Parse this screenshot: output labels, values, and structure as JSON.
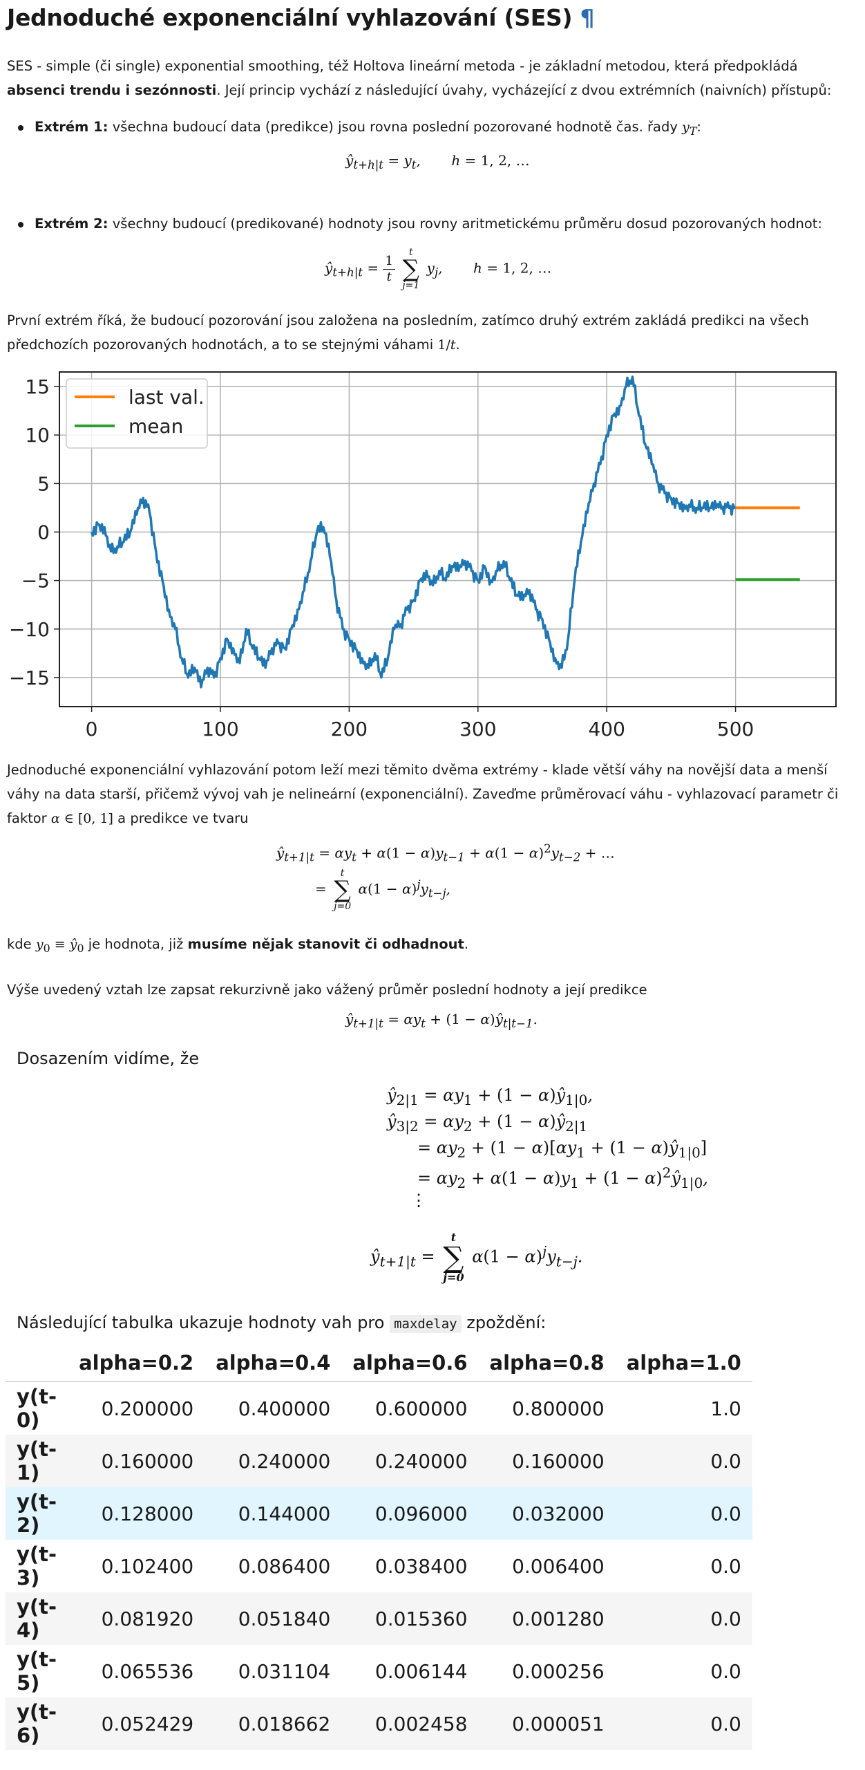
{
  "heading": {
    "title": "Jednoduché exponenciální vyhlazování (SES)",
    "anchor": "¶"
  },
  "intro": {
    "text": "SES - simple (či single) exponential smoothing, též Holtova lineární metoda - je základní metodou, která předpokládá ",
    "bold": "absenci trendu i sezónnosti",
    "rest": ". Její princip vychází z následující úvahy, vycházející z dvou extrémních (naivních) přístupů:"
  },
  "extreme1": {
    "label": "Extrém 1:",
    "text": " všechna budoucí data (predikce) jsou rovna poslední pozorované hodnotě čas. řady "
  },
  "extreme2": {
    "label": "Extrém 2:",
    "text": " všechny budoucí (predikované) hodnoty jsou rovny aritmetickému průměru dosud pozorovaných hodnot:"
  },
  "para_after_extremes": "První extrém říká, že budoucí pozorování jsou založena na posledním, zatímco druhý extrém zakládá predikci na všech předchozích pozorovaných hodnotách, a to se stejnými váhami ",
  "para_ses": "Jednoduché exponenciální vyhlazování potom leží mezi těmito dvěma extrémy - klade větší váhy na novější data a menší váhy na data starší, přičemž vývoj vah je nelineární (exponenciální). Zaveďme průměrovací váhu - vyhlazovací parametr či faktor ",
  "para_ses_end": " a predikce ve tvaru",
  "kde": {
    "pre": "kde ",
    "mid": " je hodnota, již ",
    "bold": "musíme nějak stanovit či odhadnout",
    "post": "."
  },
  "rekurzivne": "Výše uvedený vztah lze zapsat rekurzivně jako vážený průměr poslední hodnoty a její predikce",
  "dosazenim": "Dosazením vidíme, že",
  "table_intro": {
    "pre": "Následující tabulka ukazuje hodnoty vah pro ",
    "code": "maxdelay",
    "post": " zpoždění:"
  },
  "weights_table": {
    "columns": [
      "alpha=0.2",
      "alpha=0.4",
      "alpha=0.6",
      "alpha=0.8",
      "alpha=1.0"
    ],
    "rows": [
      {
        "label": "y(t-0)",
        "values": [
          "0.200000",
          "0.400000",
          "0.600000",
          "0.800000",
          "1.0"
        ]
      },
      {
        "label": "y(t-1)",
        "values": [
          "0.160000",
          "0.240000",
          "0.240000",
          "0.160000",
          "0.0"
        ]
      },
      {
        "label": "y(t-2)",
        "values": [
          "0.128000",
          "0.144000",
          "0.096000",
          "0.032000",
          "0.0"
        ]
      },
      {
        "label": "y(t-3)",
        "values": [
          "0.102400",
          "0.086400",
          "0.038400",
          "0.006400",
          "0.0"
        ]
      },
      {
        "label": "y(t-4)",
        "values": [
          "0.081920",
          "0.051840",
          "0.015360",
          "0.001280",
          "0.0"
        ]
      },
      {
        "label": "y(t-5)",
        "values": [
          "0.065536",
          "0.031104",
          "0.006144",
          "0.000256",
          "0.0"
        ]
      },
      {
        "label": "y(t-6)",
        "values": [
          "0.052429",
          "0.018662",
          "0.002458",
          "0.000051",
          "0.0"
        ]
      }
    ]
  },
  "colors": {
    "series": "#1f77b4",
    "last_val": "#ff7f0e",
    "mean": "#2ca02c"
  },
  "chart_data": {
    "type": "line",
    "xlim": [
      -25,
      578
    ],
    "ylim": [
      -18,
      16.5
    ],
    "x_ticks": [
      0,
      100,
      200,
      300,
      400,
      500
    ],
    "y_ticks": [
      15,
      10,
      5,
      0,
      -5,
      -10,
      -15
    ],
    "grid": true,
    "legend_position": "top-left",
    "series": [
      {
        "name": "",
        "x": [
          0,
          5,
          10,
          15,
          20,
          25,
          30,
          35,
          40,
          45,
          50,
          55,
          60,
          65,
          70,
          75,
          80,
          85,
          90,
          95,
          100,
          105,
          110,
          115,
          120,
          125,
          130,
          135,
          140,
          145,
          150,
          155,
          160,
          165,
          170,
          175,
          180,
          185,
          190,
          195,
          200,
          205,
          210,
          215,
          220,
          225,
          230,
          235,
          240,
          245,
          250,
          255,
          260,
          265,
          270,
          275,
          280,
          285,
          290,
          295,
          300,
          305,
          310,
          315,
          320,
          325,
          330,
          335,
          340,
          345,
          350,
          355,
          360,
          365,
          370,
          375,
          380,
          385,
          390,
          395,
          400,
          405,
          410,
          415,
          420,
          425,
          430,
          435,
          440,
          445,
          450,
          455,
          460,
          465,
          470,
          475,
          480,
          485,
          490,
          495,
          500
        ],
        "values": [
          0,
          0.8,
          0.5,
          -2,
          -1.5,
          -1,
          0,
          1.8,
          3.5,
          2,
          -2,
          -5,
          -8,
          -10,
          -13,
          -15,
          -14,
          -16,
          -14,
          -15,
          -13,
          -11,
          -12,
          -13.5,
          -10,
          -12,
          -13,
          -14,
          -12,
          -11.5,
          -12,
          -10,
          -8,
          -6,
          -3,
          0,
          0.5,
          -2.5,
          -7,
          -10,
          -11,
          -12,
          -13,
          -14,
          -12.5,
          -15,
          -13,
          -10,
          -9.5,
          -8,
          -7,
          -5,
          -4,
          -5.5,
          -4,
          -5,
          -3.5,
          -4,
          -3,
          -4,
          -5,
          -3.5,
          -5,
          -4,
          -3,
          -5,
          -6.5,
          -7,
          -6,
          -8,
          -9,
          -11,
          -13,
          -14,
          -11,
          -5,
          -1,
          2,
          5,
          7,
          10,
          12,
          13,
          15,
          16,
          12,
          9,
          7,
          5,
          4,
          3.5,
          3,
          2.8,
          2.6,
          2.5,
          2.5,
          2.5,
          2.5,
          2.6,
          2.5,
          2.5
        ]
      },
      {
        "name": "last val.",
        "x": [
          500,
          550
        ],
        "values": [
          2.5,
          2.5
        ]
      },
      {
        "name": "mean",
        "x": [
          500,
          550
        ],
        "values": [
          -4.9,
          -4.9
        ]
      }
    ]
  }
}
